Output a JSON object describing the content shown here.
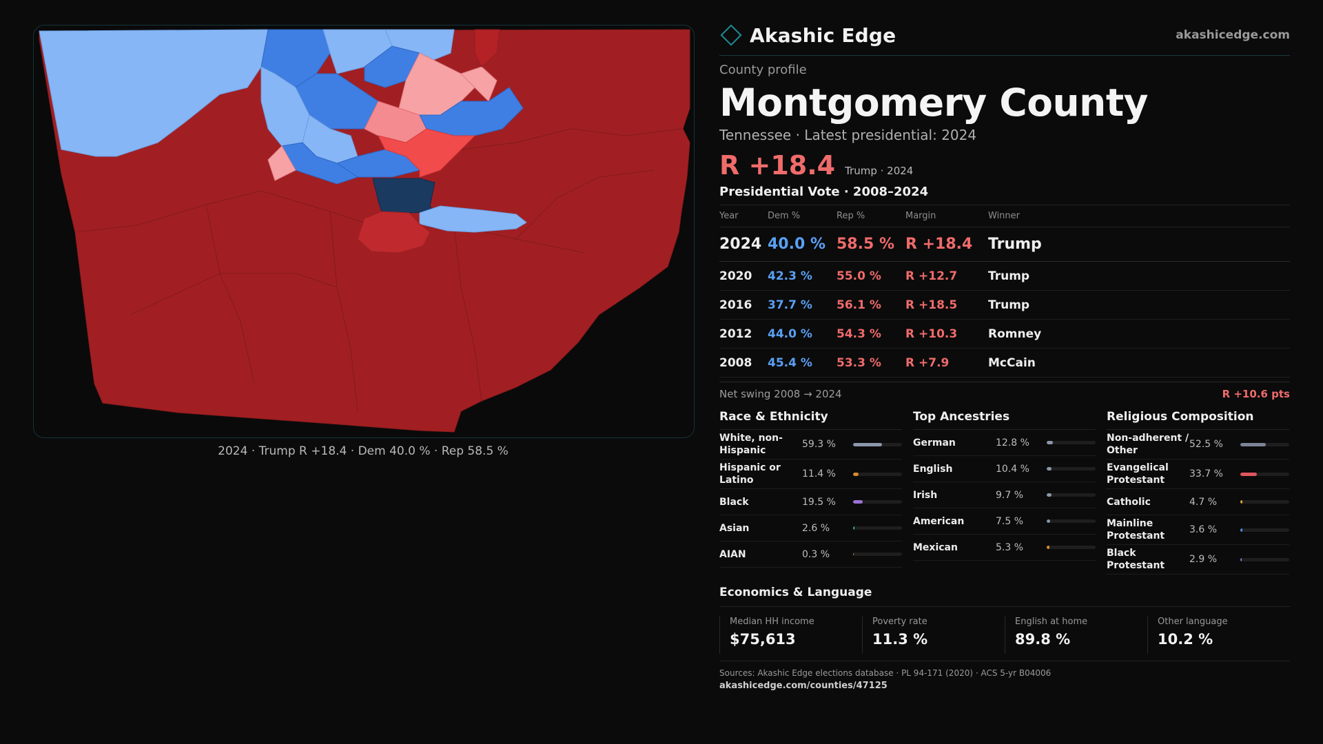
{
  "colors": {
    "rep_dark": "#a11f22",
    "rep_mid": "#f24b4b",
    "rep_light": "#f7a3a6",
    "dem_light": "#86b6f6",
    "dem_mid": "#3f7fe3",
    "dem_dark": "#1a3a60",
    "accent": "#1f8d96"
  },
  "brand": {
    "name": "Akashic Edge",
    "site": "akashicedge.com",
    "logo_icon": "diamond-outline-icon"
  },
  "map": {
    "caption": "2024 · Trump R +18.4 · Dem 40.0 % · Rep 58.5 %"
  },
  "header": {
    "kicker": "County profile",
    "title": "Montgomery County",
    "subtitle": "Tennessee · Latest presidential: 2024",
    "margin": "R +18.4",
    "margin_note": "Trump · 2024"
  },
  "votes": {
    "title": "Presidential Vote · 2008–2024",
    "columns": [
      "Year",
      "Dem %",
      "Rep %",
      "Margin",
      "Winner"
    ],
    "rows": [
      {
        "year": "2024",
        "dem": "40.0 %",
        "rep": "58.5 %",
        "margin": "R +18.4",
        "winner": "Trump"
      },
      {
        "year": "2020",
        "dem": "42.3 %",
        "rep": "55.0 %",
        "margin": "R +12.7",
        "winner": "Trump"
      },
      {
        "year": "2016",
        "dem": "37.7 %",
        "rep": "56.1 %",
        "margin": "R +18.5",
        "winner": "Trump"
      },
      {
        "year": "2012",
        "dem": "44.0 %",
        "rep": "54.3 %",
        "margin": "R +10.3",
        "winner": "Romney"
      },
      {
        "year": "2008",
        "dem": "45.4 %",
        "rep": "53.3 %",
        "margin": "R +7.9",
        "winner": "McCain"
      }
    ],
    "swing_label": "Net swing 2008 → 2024",
    "swing_value": "R +10.6 pts"
  },
  "race": {
    "title": "Race & Ethnicity",
    "items": [
      {
        "label": "White, non-Hispanic",
        "pct": "59.3 %",
        "value": 59.3,
        "color": "#8c97ab"
      },
      {
        "label": "Hispanic or Latino",
        "pct": "11.4 %",
        "value": 11.4,
        "color": "#d98b2b"
      },
      {
        "label": "Black",
        "pct": "19.5 %",
        "value": 19.5,
        "color": "#9b72d6"
      },
      {
        "label": "Asian",
        "pct": "2.6 %",
        "value": 2.6,
        "color": "#35b39a"
      },
      {
        "label": "AIAN",
        "pct": "0.3 %",
        "value": 0.3,
        "color": "#c9824a"
      }
    ]
  },
  "ancestry": {
    "title": "Top Ancestries",
    "items": [
      {
        "label": "German",
        "pct": "12.8 %",
        "value": 12.8,
        "color": "#8c97ab"
      },
      {
        "label": "English",
        "pct": "10.4 %",
        "value": 10.4,
        "color": "#8c97ab"
      },
      {
        "label": "Irish",
        "pct": "9.7 %",
        "value": 9.7,
        "color": "#8c97ab"
      },
      {
        "label": "American",
        "pct": "7.5 %",
        "value": 7.5,
        "color": "#8c97ab"
      },
      {
        "label": "Mexican",
        "pct": "5.3 %",
        "value": 5.3,
        "color": "#d98b2b"
      }
    ]
  },
  "religion": {
    "title": "Religious Composition",
    "items": [
      {
        "label": "Non-adherent / Other",
        "pct": "52.5 %",
        "value": 52.5,
        "color": "#7b8596"
      },
      {
        "label": "Evangelical Protestant",
        "pct": "33.7 %",
        "value": 33.7,
        "color": "#e0575f"
      },
      {
        "label": "Catholic",
        "pct": "4.7 %",
        "value": 4.7,
        "color": "#e2a532"
      },
      {
        "label": "Mainline Protestant",
        "pct": "3.6 %",
        "value": 3.6,
        "color": "#4f8fe6"
      },
      {
        "label": "Black Protestant",
        "pct": "2.9 %",
        "value": 2.9,
        "color": "#8a79d4"
      }
    ]
  },
  "economics": {
    "title": "Economics & Language",
    "cells": [
      {
        "label": "Median HH income",
        "value": "$75,613"
      },
      {
        "label": "Poverty rate",
        "value": "11.3 %"
      },
      {
        "label": "English at home",
        "value": "89.8 %"
      },
      {
        "label": "Other language",
        "value": "10.2 %"
      }
    ]
  },
  "footer": {
    "sources": "Sources: Akashic Edge elections database · PL 94-171 (2020) · ACS 5-yr B04006",
    "url": "akashicedge.com/counties/47125"
  }
}
